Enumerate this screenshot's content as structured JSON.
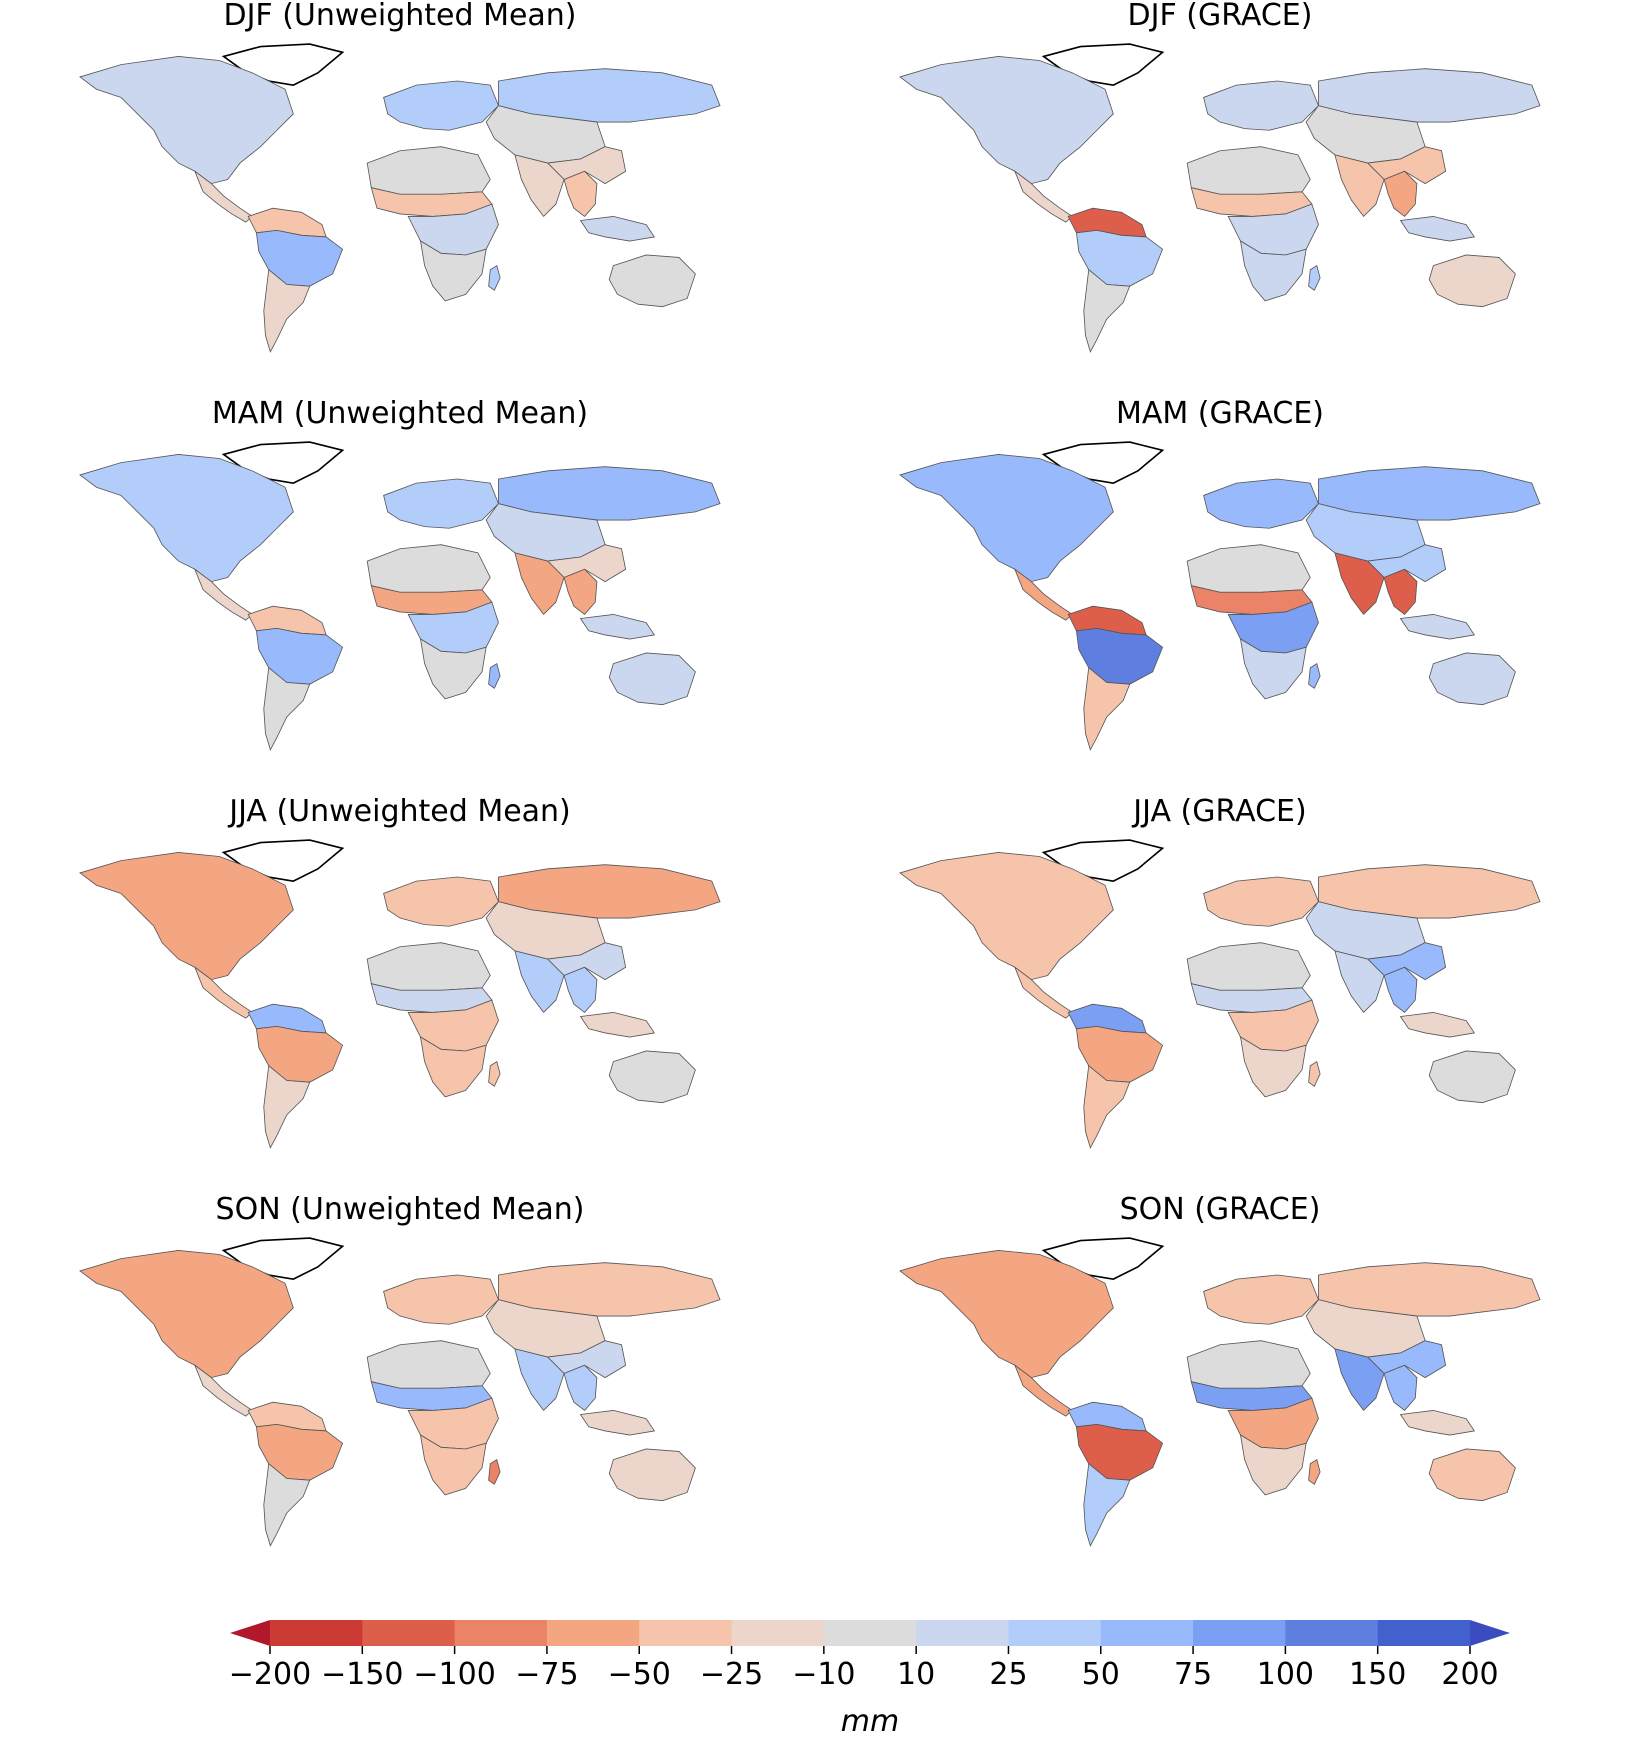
{
  "panels": [
    {
      "id": "djf-mean",
      "title": "DJF (Unweighted Mean)",
      "season": "DJF",
      "source": "Unweighted Mean",
      "regions": {
        "namerica": 1,
        "greenland": 0,
        "camerica": -1,
        "amazon": 3,
        "nsam": -2,
        "ssam": -1,
        "sahel": -2,
        "cafrica": 1,
        "safrica": 0,
        "nafrica": 0,
        "europe": 2,
        "siberia": 2,
        "casia": 0,
        "india": -1,
        "seasia": -2,
        "mcontinent": 1,
        "australia": 0,
        "china": -1,
        "madagascar": 2
      }
    },
    {
      "id": "djf-grace",
      "title": "DJF (GRACE)",
      "season": "DJF",
      "source": "GRACE",
      "regions": {
        "namerica": 1,
        "greenland": 0,
        "camerica": -1,
        "amazon": 2,
        "nsam": -5,
        "ssam": 0,
        "sahel": -2,
        "cafrica": 1,
        "safrica": 1,
        "nafrica": 0,
        "europe": 1,
        "siberia": 1,
        "casia": 0,
        "india": -2,
        "seasia": -3,
        "mcontinent": 1,
        "australia": -1,
        "china": -2,
        "madagascar": 2
      }
    },
    {
      "id": "mam-mean",
      "title": "MAM (Unweighted Mean)",
      "season": "MAM",
      "source": "Unweighted Mean",
      "regions": {
        "namerica": 2,
        "greenland": 0,
        "camerica": -1,
        "amazon": 3,
        "nsam": -2,
        "ssam": 0,
        "sahel": -3,
        "cafrica": 2,
        "safrica": 0,
        "nafrica": 0,
        "europe": 2,
        "siberia": 3,
        "casia": 1,
        "india": -3,
        "seasia": -3,
        "mcontinent": 1,
        "australia": 1,
        "china": -1,
        "madagascar": 3
      }
    },
    {
      "id": "mam-grace",
      "title": "MAM (GRACE)",
      "season": "MAM",
      "source": "GRACE",
      "regions": {
        "namerica": 3,
        "greenland": 0,
        "camerica": -3,
        "amazon": 5,
        "nsam": -5,
        "ssam": -2,
        "sahel": -4,
        "cafrica": 4,
        "safrica": 1,
        "nafrica": 0,
        "europe": 3,
        "siberia": 3,
        "casia": 2,
        "india": -5,
        "seasia": -5,
        "mcontinent": 1,
        "australia": 1,
        "china": 2,
        "madagascar": 3
      }
    },
    {
      "id": "jja-mean",
      "title": "JJA (Unweighted Mean)",
      "season": "JJA",
      "source": "Unweighted Mean",
      "regions": {
        "namerica": -3,
        "greenland": 0,
        "camerica": -2,
        "amazon": -3,
        "nsam": 3,
        "ssam": -1,
        "sahel": 1,
        "cafrica": -2,
        "safrica": -2,
        "nafrica": 0,
        "europe": -2,
        "siberia": -3,
        "casia": -1,
        "india": 2,
        "seasia": 2,
        "mcontinent": -1,
        "australia": 0,
        "china": 1,
        "madagascar": -2
      }
    },
    {
      "id": "jja-grace",
      "title": "JJA (GRACE)",
      "season": "JJA",
      "source": "GRACE",
      "regions": {
        "namerica": -2,
        "greenland": 0,
        "camerica": -2,
        "amazon": -3,
        "nsam": 4,
        "ssam": -2,
        "sahel": 1,
        "cafrica": -2,
        "safrica": -1,
        "nafrica": 0,
        "europe": -2,
        "siberia": -2,
        "casia": 1,
        "india": 1,
        "seasia": 3,
        "mcontinent": -1,
        "australia": 0,
        "china": 3,
        "madagascar": -2
      }
    },
    {
      "id": "son-mean",
      "title": "SON (Unweighted Mean)",
      "season": "SON",
      "source": "Unweighted Mean",
      "regions": {
        "namerica": -3,
        "greenland": 0,
        "camerica": -1,
        "amazon": -3,
        "nsam": -2,
        "ssam": 0,
        "sahel": 3,
        "cafrica": -2,
        "safrica": -2,
        "nafrica": 0,
        "europe": -2,
        "siberia": -2,
        "casia": -1,
        "india": 2,
        "seasia": 2,
        "mcontinent": -1,
        "australia": -1,
        "china": 1,
        "madagascar": -4
      }
    },
    {
      "id": "son-grace",
      "title": "SON (GRACE)",
      "season": "SON",
      "source": "GRACE",
      "regions": {
        "namerica": -3,
        "greenland": 0,
        "camerica": -3,
        "amazon": -5,
        "nsam": 3,
        "ssam": 2,
        "sahel": 4,
        "cafrica": -3,
        "safrica": -1,
        "nafrica": 0,
        "europe": -2,
        "siberia": -2,
        "casia": -1,
        "india": 4,
        "seasia": 3,
        "mcontinent": -1,
        "australia": -2,
        "china": 3,
        "madagascar": -3
      }
    }
  ],
  "colorbar": {
    "bounds": [
      "−200",
      "−150",
      "−100",
      "−75",
      "−50",
      "−25",
      "−10",
      "10",
      "25",
      "50",
      "75",
      "100",
      "150",
      "200"
    ],
    "unit": "mm",
    "extend": "both",
    "colors": [
      "#b2182b",
      "#cc3a34",
      "#dd5f4b",
      "#ea8367",
      "#f4a683",
      "#f5c4ab",
      "#ecd6cb",
      "#dcdcdc",
      "#cbd7ee",
      "#b3cdfb",
      "#98b9fb",
      "#7b9ff2",
      "#5e7fe0",
      "#4361cc",
      "#3b4cc0"
    ]
  }
}
